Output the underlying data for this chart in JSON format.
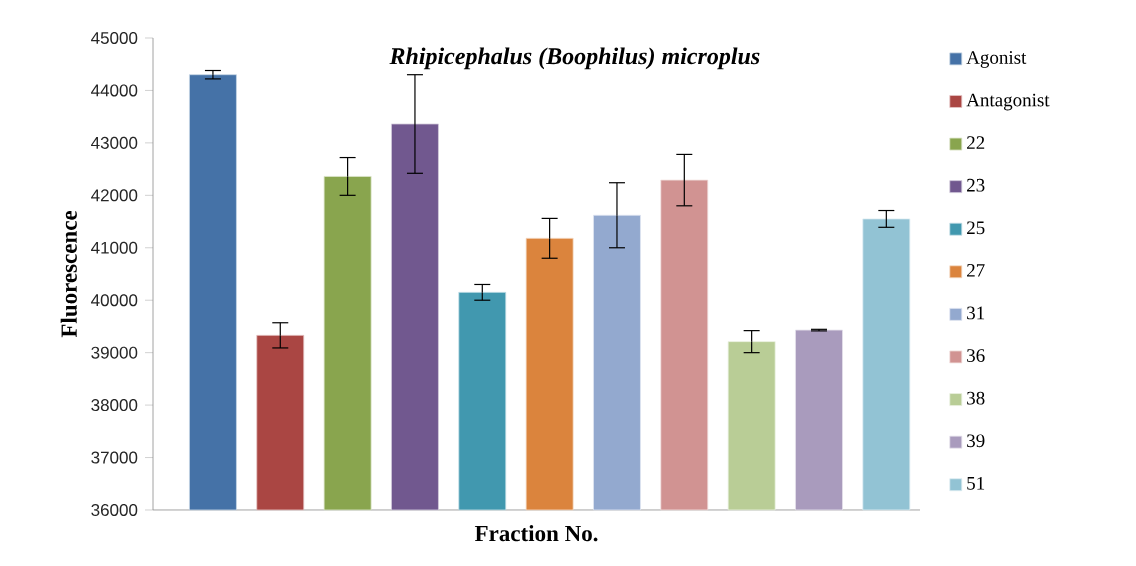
{
  "chart_data": {
    "type": "bar",
    "title": "Rhipicephalus (Boophilus) microplus",
    "xlabel": "Fraction No.",
    "ylabel": "Fluorescence",
    "categories": [
      null,
      null,
      null,
      null,
      null,
      null,
      null,
      null,
      null,
      null,
      null
    ],
    "ylim": [
      36000,
      45000
    ],
    "yticks": [
      36000,
      37000,
      38000,
      39000,
      40000,
      41000,
      42000,
      43000,
      44000,
      45000
    ],
    "tick_labels": "y",
    "legend": "right",
    "series": [
      {
        "name": "Agonist",
        "color": "#4572a7",
        "values": [
          44300,
          null,
          null,
          null,
          null,
          null,
          null,
          null,
          null,
          null,
          null
        ],
        "errors": [
          80,
          null,
          null,
          null,
          null,
          null,
          null,
          null,
          null,
          null,
          null
        ]
      },
      {
        "name": "Antagonist",
        "color": "#aa4643",
        "values": [
          null,
          39330,
          null,
          null,
          null,
          null,
          null,
          null,
          null,
          null,
          null
        ],
        "errors": [
          null,
          240,
          null,
          null,
          null,
          null,
          null,
          null,
          null,
          null,
          null
        ]
      },
      {
        "name": "22",
        "color": "#89a54e",
        "values": [
          null,
          null,
          42360,
          null,
          null,
          null,
          null,
          null,
          null,
          null,
          null
        ],
        "errors": [
          null,
          null,
          360,
          null,
          null,
          null,
          null,
          null,
          null,
          null,
          null
        ]
      },
      {
        "name": "23",
        "color": "#71588f",
        "values": [
          null,
          null,
          null,
          43360,
          null,
          null,
          null,
          null,
          null,
          null,
          null
        ],
        "errors": [
          null,
          null,
          null,
          940,
          null,
          null,
          null,
          null,
          null,
          null,
          null
        ]
      },
      {
        "name": "25",
        "color": "#4198af",
        "values": [
          null,
          null,
          null,
          null,
          40150,
          null,
          null,
          null,
          null,
          null,
          null
        ],
        "errors": [
          null,
          null,
          null,
          null,
          150,
          null,
          null,
          null,
          null,
          null,
          null
        ]
      },
      {
        "name": "27",
        "color": "#db843d",
        "values": [
          null,
          null,
          null,
          null,
          null,
          41180,
          null,
          null,
          null,
          null,
          null
        ],
        "errors": [
          null,
          null,
          null,
          null,
          null,
          380,
          null,
          null,
          null,
          null,
          null
        ]
      },
      {
        "name": "31",
        "color": "#93a9cf",
        "values": [
          null,
          null,
          null,
          null,
          null,
          null,
          41620,
          null,
          null,
          null,
          null
        ],
        "errors": [
          null,
          null,
          null,
          null,
          null,
          null,
          620,
          null,
          null,
          null,
          null
        ]
      },
      {
        "name": "36",
        "color": "#d19392",
        "values": [
          null,
          null,
          null,
          null,
          null,
          null,
          null,
          42290,
          null,
          null,
          null
        ],
        "errors": [
          null,
          null,
          null,
          null,
          null,
          null,
          null,
          490,
          null,
          null,
          null
        ]
      },
      {
        "name": "38",
        "color": "#b9cd96",
        "values": [
          null,
          null,
          null,
          null,
          null,
          null,
          null,
          null,
          39210,
          null,
          null
        ],
        "errors": [
          null,
          null,
          null,
          null,
          null,
          null,
          null,
          null,
          210,
          null,
          null
        ]
      },
      {
        "name": "39",
        "color": "#a99bbd",
        "values": [
          null,
          null,
          null,
          null,
          null,
          null,
          null,
          null,
          null,
          39430,
          null
        ],
        "errors": [
          null,
          null,
          null,
          null,
          null,
          null,
          null,
          null,
          null,
          15,
          null
        ]
      },
      {
        "name": "51",
        "color": "#92c3d4",
        "values": [
          null,
          null,
          null,
          null,
          null,
          null,
          null,
          null,
          null,
          null,
          41550
        ],
        "errors": [
          null,
          null,
          null,
          null,
          null,
          null,
          null,
          null,
          null,
          null,
          160
        ]
      }
    ]
  }
}
